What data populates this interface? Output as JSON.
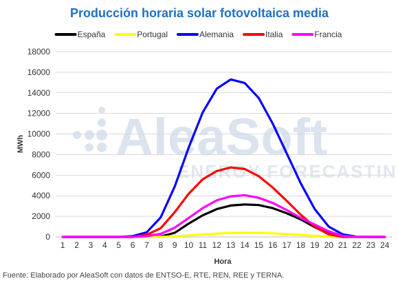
{
  "watermark": {
    "name": "AleaSoft",
    "tagline": "ENERGY FORECASTING"
  },
  "footnote": "Fuente: Elaborado por AleaSoft con datos de ENTSO-E, RTE, REN, REE y TERNA.",
  "chart_data": {
    "type": "line",
    "title": "Producción horaria solar fotovoltaica media",
    "xlabel": "Hora",
    "ylabel": "MWh",
    "ylim": [
      0,
      18000
    ],
    "yticks": [
      0,
      2000,
      4000,
      6000,
      8000,
      10000,
      12000,
      14000,
      16000,
      18000
    ],
    "grid": true,
    "legend_position": "top",
    "x": [
      1,
      2,
      3,
      4,
      5,
      6,
      7,
      8,
      9,
      10,
      11,
      12,
      13,
      14,
      15,
      16,
      17,
      18,
      19,
      20,
      21,
      22,
      23,
      24
    ],
    "series": [
      {
        "name": "España",
        "color": "#000000",
        "values": [
          0,
          0,
          0,
          0,
          0,
          0,
          0,
          50,
          400,
          1300,
          2100,
          2700,
          3050,
          3150,
          3100,
          2800,
          2300,
          1700,
          950,
          300,
          30,
          0,
          0,
          0
        ]
      },
      {
        "name": "Portugal",
        "color": "#ffff00",
        "values": [
          0,
          0,
          0,
          0,
          0,
          0,
          0,
          10,
          60,
          150,
          250,
          330,
          380,
          400,
          390,
          350,
          280,
          200,
          110,
          30,
          0,
          0,
          0,
          0
        ]
      },
      {
        "name": "Alemania",
        "color": "#0000ff",
        "values": [
          0,
          0,
          0,
          0,
          0,
          80,
          450,
          1900,
          4900,
          8700,
          12100,
          14400,
          15300,
          14950,
          13500,
          11000,
          8100,
          5200,
          2700,
          1000,
          250,
          20,
          0,
          0
        ]
      },
      {
        "name": "Italia",
        "color": "#ff0000",
        "values": [
          0,
          0,
          0,
          0,
          0,
          0,
          200,
          850,
          2400,
          4200,
          5600,
          6400,
          6750,
          6600,
          5900,
          4800,
          3500,
          2150,
          1000,
          250,
          0,
          0,
          0,
          0
        ]
      },
      {
        "name": "Francia",
        "color": "#ff00ff",
        "values": [
          0,
          0,
          0,
          0,
          0,
          0,
          80,
          300,
          900,
          1850,
          2800,
          3550,
          3950,
          4050,
          3800,
          3300,
          2600,
          1850,
          1200,
          550,
          100,
          0,
          0,
          0
        ]
      }
    ]
  }
}
